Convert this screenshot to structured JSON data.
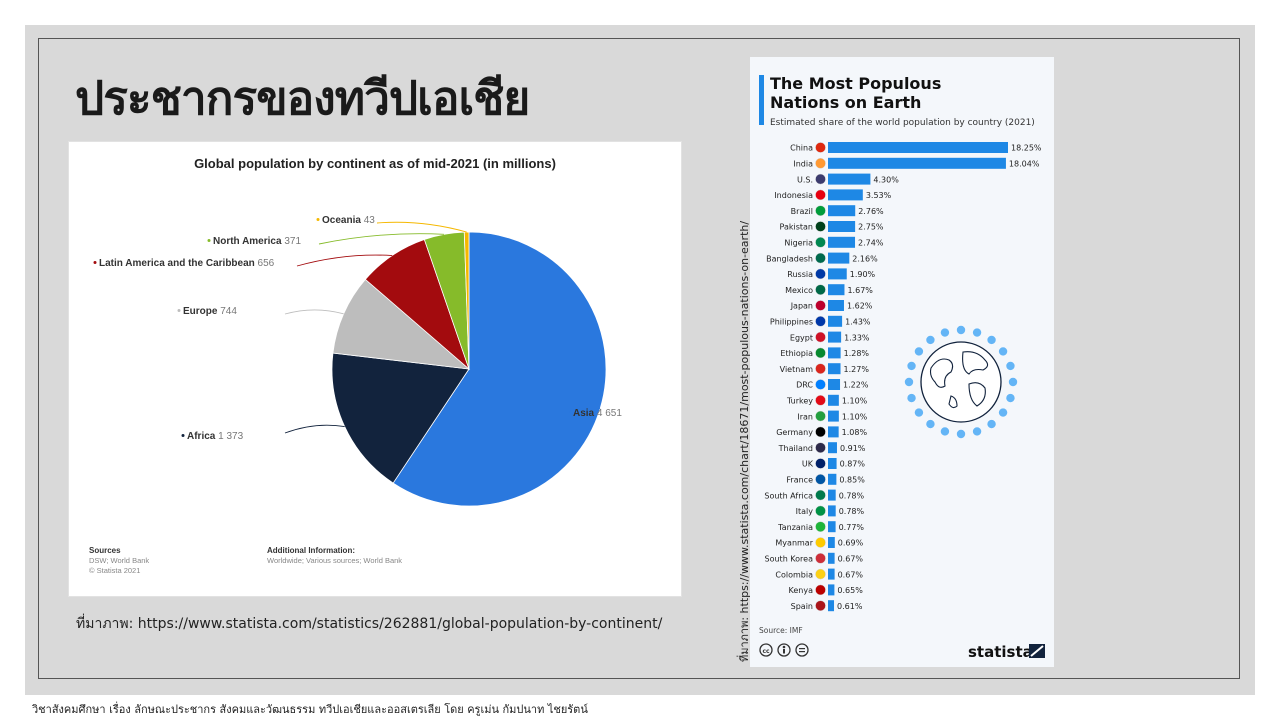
{
  "slide": {
    "title": "ประชากรของทวีปเอเชีย",
    "pie_caption": "ที่มาภาพ: https://www.statista.com/statistics/262881/global-population-by-continent/",
    "bar_caption": "ที่มาภาพ: https://www.statista.com/chart/18671/most-populous-nations-on-earth/",
    "footer": "วิชาสังคมศึกษา เรื่อง ลักษณะประชากร สังคมและวัฒนธรรม ทวีปเอเชียและออสเตรเลีย โดย ครูเม่น กัมปนาท ไชยรัตน์"
  },
  "chart_data": [
    {
      "type": "pie",
      "title": "Global population by continent as of mid-2021 (in millions)",
      "slices": [
        {
          "label": "Asia",
          "value": 4651,
          "value_text": "4 651",
          "color": "#2a78de"
        },
        {
          "label": "Africa",
          "value": 1373,
          "value_text": "1 373",
          "color": "#12233d"
        },
        {
          "label": "Europe",
          "value": 744,
          "value_text": "744",
          "color": "#bdbdbd"
        },
        {
          "label": "Latin America and the Caribbean",
          "value": 656,
          "value_text": "656",
          "color": "#a30b0e"
        },
        {
          "label": "North America",
          "value": 371,
          "value_text": "371",
          "color": "#86bb2a"
        },
        {
          "label": "Oceania",
          "value": 43,
          "value_text": "43",
          "color": "#f5b800"
        }
      ],
      "sources_heading": "Sources",
      "sources": [
        "DSW; World Bank",
        "© Statista 2021"
      ],
      "additional_heading": "Additional Information:",
      "additional": "Worldwide; Various sources; World Bank"
    },
    {
      "type": "bar",
      "orientation": "horizontal",
      "title_line1": "The Most Populous",
      "title_line2": "Nations on Earth",
      "subtitle": "Estimated share of the world population by country (2021)",
      "unit": "%",
      "accent_color": "#1e88e5",
      "categories": [
        "China",
        "India",
        "U.S.",
        "Indonesia",
        "Brazil",
        "Pakistan",
        "Nigeria",
        "Bangladesh",
        "Russia",
        "Mexico",
        "Japan",
        "Philippines",
        "Egypt",
        "Ethiopia",
        "Vietnam",
        "DRC",
        "Turkey",
        "Iran",
        "Germany",
        "Thailand",
        "UK",
        "France",
        "South Africa",
        "Italy",
        "Tanzania",
        "Myanmar",
        "South Korea",
        "Colombia",
        "Kenya",
        "Spain"
      ],
      "values": [
        18.25,
        18.04,
        4.3,
        3.53,
        2.76,
        2.75,
        2.74,
        2.16,
        1.9,
        1.67,
        1.62,
        1.43,
        1.33,
        1.28,
        1.27,
        1.22,
        1.1,
        1.1,
        1.08,
        0.91,
        0.87,
        0.85,
        0.78,
        0.78,
        0.77,
        0.69,
        0.67,
        0.67,
        0.65,
        0.61
      ],
      "value_labels": [
        "18.25%",
        "18.04%",
        "4.30%",
        "3.53%",
        "2.76%",
        "2.75%",
        "2.74%",
        "2.16%",
        "1.90%",
        "1.67%",
        "1.62%",
        "1.43%",
        "1.33%",
        "1.28%",
        "1.27%",
        "1.22%",
        "1.10%",
        "1.10%",
        "1.08%",
        "0.91%",
        "0.87%",
        "0.85%",
        "0.78%",
        "0.78%",
        "0.77%",
        "0.69%",
        "0.67%",
        "0.67%",
        "0.65%",
        "0.61%"
      ],
      "flag_colors": [
        "#de2910",
        "#ff9933",
        "#3c3b6e",
        "#e70011",
        "#009c3b",
        "#01411c",
        "#008751",
        "#006a4e",
        "#0039a6",
        "#006847",
        "#bc002d",
        "#0038a8",
        "#ce1126",
        "#078930",
        "#da251d",
        "#007fff",
        "#e30a17",
        "#239f40",
        "#000000",
        "#2d2a4a",
        "#012169",
        "#0055a4",
        "#007a4d",
        "#009246",
        "#1eb53a",
        "#fecb00",
        "#cd2e3a",
        "#fcd116",
        "#bb0000",
        "#aa151b"
      ],
      "source": "Source: IMF",
      "brand": "statista"
    }
  ]
}
